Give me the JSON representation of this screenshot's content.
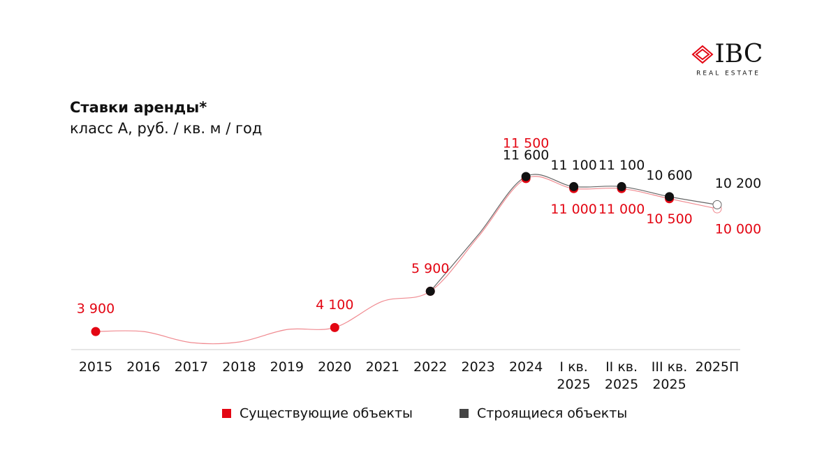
{
  "logo": {
    "mark": "IBC",
    "subtitle": "REAL ESTATE"
  },
  "chart_data": {
    "type": "line",
    "title": "Ставки аренды*",
    "subtitle": "класс А, руб. / кв. м / год",
    "categories": [
      "2015",
      "2016",
      "2017",
      "2018",
      "2019",
      "2020",
      "2021",
      "2022",
      "2023",
      "2024",
      "I кв.\n2025",
      "II кв.\n2025",
      "III кв.\n2025",
      "2025П"
    ],
    "series": [
      {
        "name": "Существующие объекты",
        "color": "#e30613",
        "values": [
          3900,
          3900,
          3350,
          3380,
          4000,
          4100,
          5400,
          5900,
          8600,
          11500,
          11000,
          11000,
          10500,
          10000
        ],
        "value_labels": [
          "3 900",
          null,
          null,
          null,
          null,
          "4 100",
          null,
          "5 900",
          null,
          "11 500",
          "11 000",
          "11 000",
          "10 500",
          "10 000"
        ]
      },
      {
        "name": "Строящиеся объекты",
        "color": "#111111",
        "values": [
          null,
          null,
          null,
          null,
          null,
          null,
          null,
          5900,
          8700,
          11600,
          11100,
          11100,
          10600,
          10200
        ],
        "value_labels": [
          null,
          null,
          null,
          null,
          null,
          null,
          null,
          null,
          null,
          "11 600",
          "11 100",
          "11 100",
          "10 600",
          "10 200"
        ]
      }
    ],
    "legend": "bottom"
  }
}
